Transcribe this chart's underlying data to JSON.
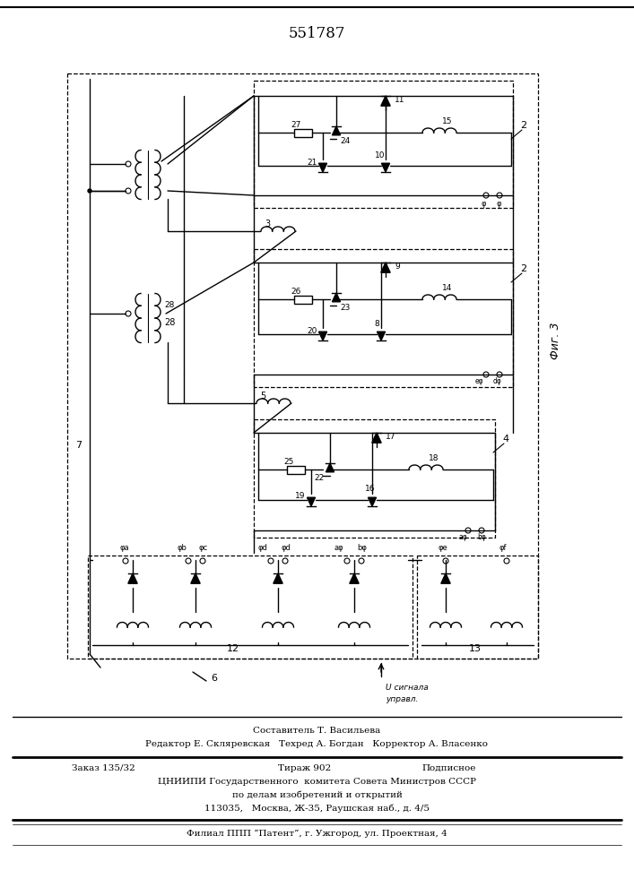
{
  "title": "551787",
  "fig_label": "Фиг. 3",
  "bg_color": "#ffffff",
  "line_color": "#000000",
  "footer_lines": [
    "Составитель Т. Васильева",
    "Редактор Е. Скляревская   Техред А. Богдан   Корректор А. Власенко",
    "Заказ 135/32",
    "Тираж 902",
    "Подписное",
    "ЦНИИПИ Государственного  комитета Совета Министров СССР",
    "по делам изобретений и открытий",
    "113035,   Москва, Ж-35, Раушская наб., д. 4/5",
    "Филиал ППП “Патент”, г. Ужгород, ул. Проектная, 4"
  ]
}
